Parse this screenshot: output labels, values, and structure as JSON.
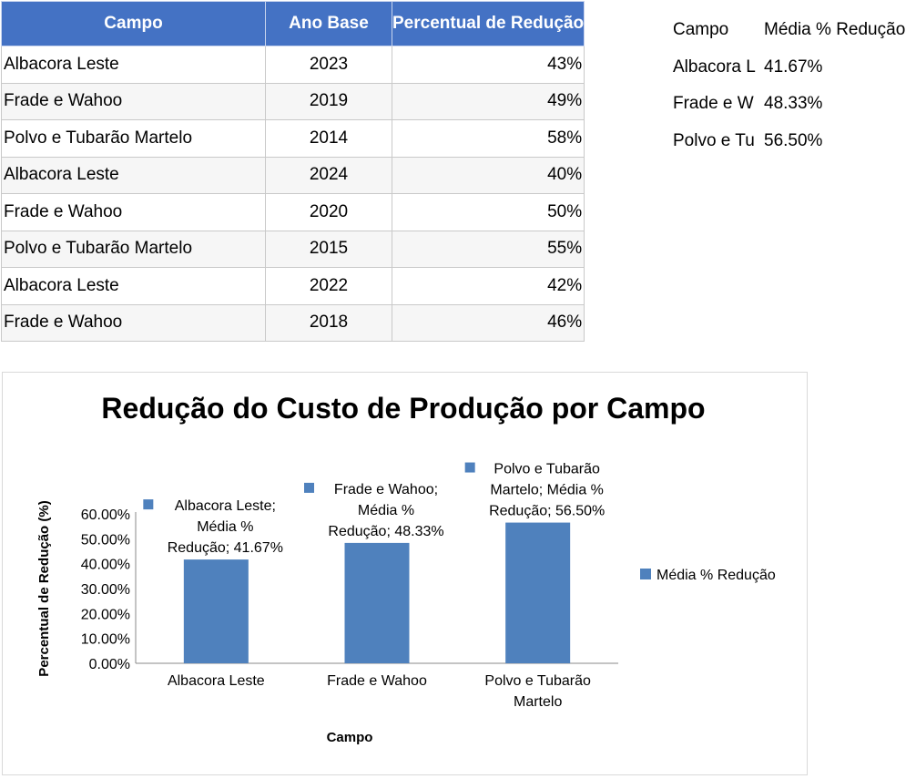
{
  "table": {
    "headers": [
      "Campo",
      "Ano Base",
      "Percentual de Redução"
    ],
    "rows": [
      [
        "Albacora Leste",
        "2023",
        "43%"
      ],
      [
        "Frade e Wahoo",
        "2019",
        "49%"
      ],
      [
        "Polvo e Tubarão Martelo",
        "2014",
        "58%"
      ],
      [
        "Albacora Leste",
        "2024",
        "40%"
      ],
      [
        "Frade e Wahoo",
        "2020",
        "50%"
      ],
      [
        "Polvo e Tubarão Martelo",
        "2015",
        "55%"
      ],
      [
        "Albacora Leste",
        "2022",
        "42%"
      ],
      [
        "Frade e Wahoo",
        "2018",
        "46%"
      ]
    ]
  },
  "summary": {
    "headers": [
      "Campo",
      "Média % Redução"
    ],
    "rows": [
      [
        "Albacora L",
        "41.67%"
      ],
      [
        "Frade e W",
        "48.33%"
      ],
      [
        "Polvo e Tu",
        "56.50%"
      ]
    ]
  },
  "chart_data": {
    "type": "bar",
    "title": "Redução do Custo de Produção por Campo",
    "xlabel": "Campo",
    "ylabel": "Percentual de Redução (%)",
    "categories": [
      "Albacora Leste",
      "Frade e Wahoo",
      "Polvo e Tubarão Martelo"
    ],
    "series": [
      {
        "name": "Média % Redução",
        "values": [
          41.67,
          48.33,
          56.5
        ],
        "color": "#4f81bd"
      }
    ],
    "data_labels": [
      [
        "Albacora Leste;",
        "Média %",
        "Redução; 41.67%"
      ],
      [
        "Frade e Wahoo;",
        "Média %",
        "Redução; 48.33%"
      ],
      [
        "Polvo e Tubarão",
        "Martelo; Média %",
        "Redução; 56.50%"
      ]
    ],
    "ylim": [
      0,
      60
    ],
    "yticks": [
      "0.00%",
      "10.00%",
      "20.00%",
      "30.00%",
      "40.00%",
      "50.00%",
      "60.00%"
    ],
    "legend": "right",
    "grid": false
  }
}
